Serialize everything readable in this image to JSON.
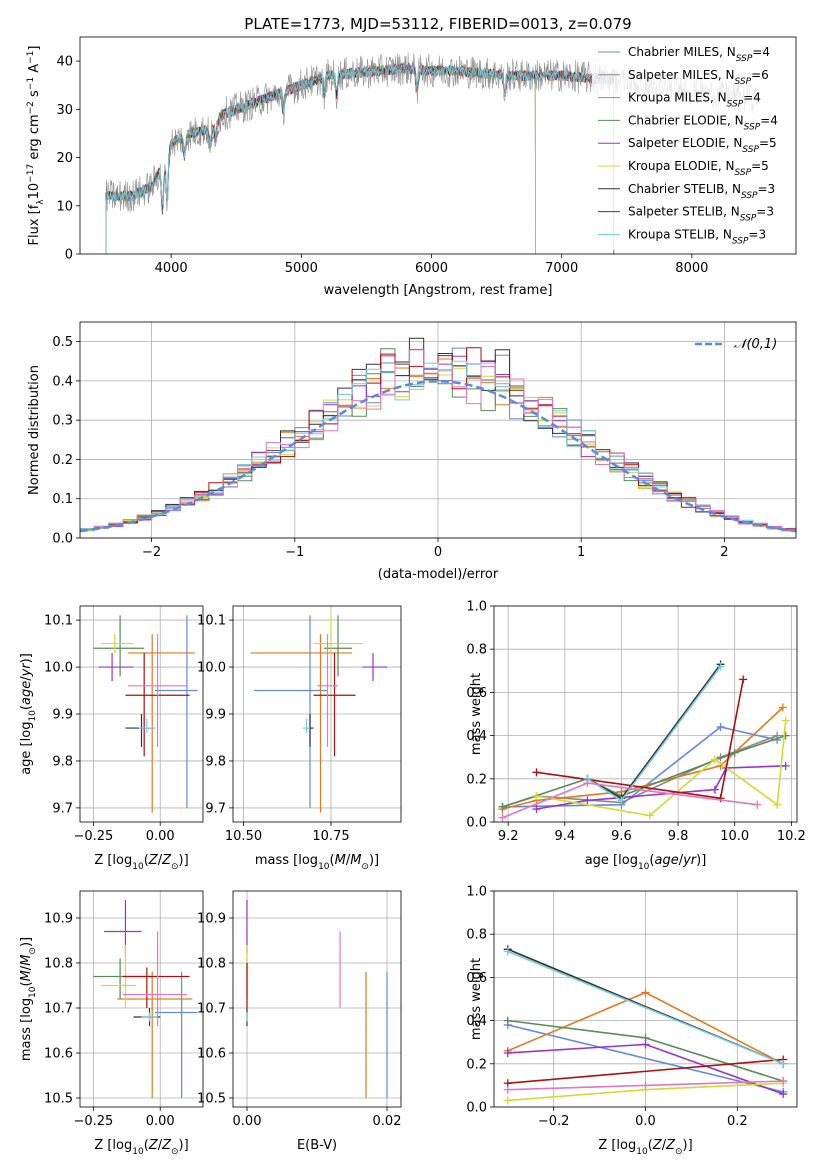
{
  "figure": {
    "title": "PLATE=1773, MJD=53112, FIBERID=0013, z=0.079"
  },
  "colors": {
    "Chabrier MILES": "#6688dd",
    "Salpeter MILES": "#888888",
    "Kroupa MILES": "#e07a1f",
    "Chabrier ELODIE": "#5a8a5a",
    "Salpeter ELODIE": "#9933cc",
    "Kroupa ELODIE": "#ccdd33",
    "Chabrier STELIB": "#333333",
    "Salpeter STELIB": "#aa1111",
    "Kroupa STELIB": "#77ccdd",
    "pink": "#e377c2",
    "normal_curve": "#5b8bdc"
  },
  "chart_data": [
    {
      "type": "line",
      "xlabel": "wavelength [Angstrom, rest frame]",
      "ylabel": "Flux [f_λ10^-17 erg cm^-2 s^-1 A^-1]",
      "xlim": [
        3300,
        8800
      ],
      "ylim": [
        0,
        45
      ],
      "xticks": [
        4000,
        5000,
        6000,
        7000,
        8000
      ],
      "yticks": [
        0,
        10,
        20,
        30,
        40
      ],
      "legend_location": "upper-right",
      "legend": [
        {
          "label": "Chabrier MILES, N",
          "sub": "SSP",
          "eq": "=4"
        },
        {
          "label": "Salpeter MILES, N",
          "sub": "SSP",
          "eq": "=6"
        },
        {
          "label": "Kroupa MILES, N",
          "sub": "SSP",
          "eq": "=4"
        },
        {
          "label": "Chabrier ELODIE, N",
          "sub": "SSP",
          "eq": "=4"
        },
        {
          "label": "Salpeter ELODIE, N",
          "sub": "SSP",
          "eq": "=5"
        },
        {
          "label": "Kroupa ELODIE, N",
          "sub": "SSP",
          "eq": "=5"
        },
        {
          "label": "Chabrier STELIB, N",
          "sub": "SSP",
          "eq": "=3"
        },
        {
          "label": "Salpeter STELIB, N",
          "sub": "SSP",
          "eq": "=3"
        },
        {
          "label": "Kroupa STELIB, N",
          "sub": "SSP",
          "eq": "=3"
        }
      ],
      "continuum": [
        [
          3500,
          12
        ],
        [
          3700,
          12
        ],
        [
          3850,
          14
        ],
        [
          3950,
          19
        ],
        [
          4000,
          23
        ],
        [
          4150,
          25
        ],
        [
          4300,
          26
        ],
        [
          4400,
          29
        ],
        [
          4600,
          31
        ],
        [
          4800,
          33
        ],
        [
          5000,
          35
        ],
        [
          5200,
          37
        ],
        [
          5400,
          37.5
        ],
        [
          5600,
          38
        ],
        [
          5800,
          38.5
        ],
        [
          6000,
          38
        ],
        [
          6200,
          38
        ],
        [
          6400,
          37.5
        ],
        [
          6600,
          37
        ],
        [
          6800,
          37
        ],
        [
          7000,
          37
        ],
        [
          7200,
          36.5
        ],
        [
          7400,
          36
        ],
        [
          7600,
          35
        ],
        [
          7800,
          34.5
        ],
        [
          8000,
          34
        ],
        [
          8200,
          33
        ],
        [
          8400,
          32.5
        ],
        [
          8500,
          32
        ]
      ],
      "cutoffs": {
        "ELODIE": [
          3500,
          6800
        ],
        "STELIB": [
          3500,
          7400
        ],
        "MILES": [
          3500,
          7400
        ]
      }
    },
    {
      "type": "histogram",
      "xlabel": "(data-model)/error",
      "ylabel": "Normed distribution",
      "xlim": [
        -2.5,
        2.5
      ],
      "ylim": [
        0,
        0.55
      ],
      "xticks": [
        -2,
        -1,
        0,
        1,
        2
      ],
      "xtick_labels": [
        "−2",
        "−1",
        "0",
        "1",
        "2"
      ],
      "yticks": [
        0.0,
        0.1,
        0.2,
        0.3,
        0.4,
        0.5
      ],
      "bins": 50,
      "legend": "𝒩(0,1)",
      "legend_location": "upper-right",
      "grid": true
    },
    {
      "type": "scatter-errorbar",
      "xlabel": "Z [log10(Z/Z⊙)]",
      "ylabel": "age  [log10(age/yr)]",
      "xlim": [
        -0.3,
        0.16
      ],
      "ylim": [
        9.67,
        10.13
      ],
      "xticks": [
        -0.25,
        0.0
      ],
      "xtick_labels": [
        "−0.25",
        "0.00"
      ],
      "yticks": [
        9.7,
        9.8,
        9.9,
        10.0,
        10.1
      ],
      "points": [
        {
          "c": "Chabrier MILES",
          "x": 0.1,
          "y": 9.95,
          "xe": [
            -0.02,
            0.14
          ],
          "ye": [
            9.7,
            10.11
          ]
        },
        {
          "c": "Kroupa MILES",
          "x": -0.03,
          "y": 10.03,
          "xe": [
            -0.12,
            0.13
          ],
          "ye": [
            9.69,
            10.07
          ]
        },
        {
          "c": "Chabrier ELODIE",
          "x": -0.15,
          "y": 10.04,
          "xe": [
            -0.25,
            -0.06
          ],
          "ye": [
            9.98,
            10.11
          ]
        },
        {
          "c": "Salpeter ELODIE",
          "x": -0.18,
          "y": 10.0,
          "xe": [
            -0.23,
            -0.1
          ],
          "ye": [
            9.97,
            10.03
          ]
        },
        {
          "c": "Kroupa ELODIE",
          "x": -0.17,
          "y": 10.05,
          "xe": [
            -0.22,
            -0.1
          ],
          "ye": [
            10.03,
            10.07
          ]
        },
        {
          "c": "Chabrier STELIB",
          "x": -0.07,
          "y": 9.87,
          "xe": [
            -0.13,
            -0.02
          ],
          "ye": [
            9.83,
            9.9
          ]
        },
        {
          "c": "Salpeter STELIB",
          "x": -0.06,
          "y": 9.94,
          "xe": [
            -0.13,
            0.11
          ],
          "ye": [
            9.81,
            10.03
          ]
        },
        {
          "c": "Kroupa STELIB",
          "x": -0.05,
          "y": 9.87,
          "xe": [
            -0.08,
            -0.02
          ],
          "ye": [
            9.86,
            9.89
          ]
        },
        {
          "c": "pink",
          "x": -0.01,
          "y": 9.96,
          "xe": [
            -0.12,
            0.1
          ],
          "ye": [
            9.83,
            10.07
          ]
        }
      ]
    },
    {
      "type": "scatter-errorbar",
      "xlabel": "mass [log10(M/M⊙)]",
      "ylabel": "",
      "xlim": [
        10.47,
        10.95
      ],
      "ylim": [
        9.67,
        10.13
      ],
      "xticks": [
        10.5,
        10.75
      ],
      "xtick_labels": [
        "10.50",
        "10.75"
      ],
      "yticks": [
        9.7,
        9.8,
        9.9,
        10.0,
        10.1
      ],
      "points": [
        {
          "c": "Chabrier MILES",
          "x": 10.69,
          "y": 9.95,
          "xe": [
            10.53,
            10.74
          ],
          "ye": [
            9.7,
            10.11
          ]
        },
        {
          "c": "Kroupa MILES",
          "x": 10.72,
          "y": 10.03,
          "xe": [
            10.52,
            10.81
          ],
          "ye": [
            9.69,
            10.07
          ]
        },
        {
          "c": "Chabrier ELODIE",
          "x": 10.77,
          "y": 10.04,
          "xe": [
            10.73,
            10.81
          ],
          "ye": [
            9.98,
            10.11
          ]
        },
        {
          "c": "Salpeter ELODIE",
          "x": 10.87,
          "y": 10.0,
          "xe": [
            10.84,
            10.91
          ],
          "ye": [
            9.97,
            10.03
          ]
        },
        {
          "c": "Kroupa ELODIE",
          "x": 10.75,
          "y": 10.05,
          "xe": [
            10.7,
            10.84
          ],
          "ye": [
            10.03,
            10.11
          ]
        },
        {
          "c": "Chabrier STELIB",
          "x": 10.69,
          "y": 9.87,
          "xe": [
            10.68,
            10.7
          ],
          "ye": [
            9.83,
            9.9
          ]
        },
        {
          "c": "Salpeter STELIB",
          "x": 10.76,
          "y": 9.94,
          "xe": [
            10.7,
            10.82
          ],
          "ye": [
            9.81,
            10.03
          ]
        },
        {
          "c": "Kroupa STELIB",
          "x": 10.68,
          "y": 9.87,
          "xe": [
            10.67,
            10.69
          ],
          "ye": [
            9.86,
            9.89
          ]
        },
        {
          "c": "pink",
          "x": 10.74,
          "y": 9.96,
          "xe": [
            10.71,
            10.77
          ],
          "ye": [
            9.83,
            10.07
          ]
        }
      ]
    },
    {
      "type": "line",
      "xlabel": "age  [log10(age/yr)]",
      "ylabel": "mass weight",
      "xlim": [
        9.15,
        10.22
      ],
      "ylim": [
        0,
        1.0
      ],
      "xticks": [
        9.2,
        9.4,
        9.6,
        9.8,
        10.0,
        10.2
      ],
      "xtick_labels": [
        "9.2",
        "9.4",
        "9.6",
        "9.8",
        "10.0",
        "10.2"
      ],
      "yticks": [
        0.0,
        0.2,
        0.4,
        0.6,
        0.8,
        1.0
      ],
      "grid": true,
      "series": [
        {
          "c": "Chabrier MILES",
          "x": [
            9.18,
            9.6,
            9.95,
            10.15
          ],
          "y": [
            0.07,
            0.08,
            0.44,
            0.38
          ]
        },
        {
          "c": "Salpeter MILES",
          "x": [
            9.18,
            9.3,
            9.6,
            9.95,
            10.15
          ],
          "y": [
            0.07,
            0.12,
            0.09,
            0.3,
            0.4
          ]
        },
        {
          "c": "Kroupa MILES",
          "x": [
            9.18,
            9.3,
            9.6,
            9.95,
            10.17
          ],
          "y": [
            0.06,
            0.1,
            0.14,
            0.26,
            0.53
          ]
        },
        {
          "c": "Chabrier ELODIE",
          "x": [
            9.18,
            9.48,
            9.6,
            10.0,
            10.18
          ],
          "y": [
            0.07,
            0.2,
            0.12,
            0.32,
            0.4
          ]
        },
        {
          "c": "Salpeter ELODIE",
          "x": [
            9.3,
            9.48,
            9.93,
            9.97,
            10.18
          ],
          "y": [
            0.06,
            0.1,
            0.15,
            0.25,
            0.26
          ]
        },
        {
          "c": "Kroupa ELODIE",
          "x": [
            9.3,
            9.7,
            9.93,
            10.15,
            10.18
          ],
          "y": [
            0.12,
            0.03,
            0.29,
            0.08,
            0.47
          ]
        },
        {
          "c": "Chabrier STELIB",
          "x": [
            9.48,
            9.6,
            9.95
          ],
          "y": [
            0.2,
            0.11,
            0.73
          ]
        },
        {
          "c": "Salpeter STELIB",
          "x": [
            9.3,
            9.95,
            10.03
          ],
          "y": [
            0.23,
            0.11,
            0.66
          ]
        },
        {
          "c": "Kroupa STELIB",
          "x": [
            9.48,
            9.6,
            9.95
          ],
          "y": [
            0.2,
            0.1,
            0.72
          ]
        },
        {
          "c": "pink",
          "x": [
            9.18,
            9.48,
            10.08
          ],
          "y": [
            0.02,
            0.18,
            0.08
          ]
        }
      ]
    },
    {
      "type": "scatter-errorbar",
      "xlabel": "Z [log10(Z/Z⊙)]",
      "ylabel": "mass [log10(M/M⊙)]",
      "xlim": [
        -0.3,
        0.16
      ],
      "ylim": [
        10.48,
        10.96
      ],
      "xticks": [
        -0.25,
        0.0
      ],
      "xtick_labels": [
        "−0.25",
        "0.00"
      ],
      "yticks": [
        10.5,
        10.6,
        10.7,
        10.8,
        10.9
      ],
      "points": [
        {
          "c": "Chabrier MILES",
          "x": 0.08,
          "y": 10.69,
          "xe": [
            -0.02,
            0.14
          ],
          "ye": [
            10.5,
            10.78
          ]
        },
        {
          "c": "Kroupa MILES",
          "x": -0.03,
          "y": 10.72,
          "xe": [
            -0.16,
            0.12
          ],
          "ye": [
            10.5,
            10.78
          ]
        },
        {
          "c": "Chabrier ELODIE",
          "x": -0.15,
          "y": 10.77,
          "xe": [
            -0.25,
            -0.03
          ],
          "ye": [
            10.72,
            10.81
          ]
        },
        {
          "c": "Salpeter ELODIE",
          "x": -0.13,
          "y": 10.87,
          "xe": [
            -0.21,
            -0.07
          ],
          "ye": [
            10.82,
            10.94
          ]
        },
        {
          "c": "Kroupa ELODIE",
          "x": -0.13,
          "y": 10.75,
          "xe": [
            -0.22,
            -0.09
          ],
          "ye": [
            10.7,
            10.84
          ]
        },
        {
          "c": "Chabrier STELIB",
          "x": -0.04,
          "y": 10.68,
          "xe": [
            -0.1,
            0.0
          ],
          "ye": [
            10.66,
            10.7
          ]
        },
        {
          "c": "Salpeter STELIB",
          "x": -0.05,
          "y": 10.77,
          "xe": [
            -0.14,
            0.11
          ],
          "ye": [
            10.7,
            10.79
          ]
        },
        {
          "c": "Kroupa STELIB",
          "x": -0.04,
          "y": 10.68,
          "xe": [
            -0.07,
            -0.01
          ],
          "ye": [
            10.67,
            10.69
          ]
        },
        {
          "c": "pink",
          "x": -0.01,
          "y": 10.73,
          "xe": [
            -0.14,
            0.1
          ],
          "ye": [
            10.66,
            10.87
          ]
        }
      ]
    },
    {
      "type": "scatter-errorbar",
      "xlabel": "E(B-V)",
      "ylabel": "",
      "xlim": [
        -0.002,
        0.022
      ],
      "ylim": [
        10.48,
        10.96
      ],
      "xticks": [
        0.0,
        0.02
      ],
      "xtick_labels": [
        "0.00",
        "0.02"
      ],
      "yticks": [
        10.5,
        10.6,
        10.7,
        10.8,
        10.9
      ],
      "points": [
        {
          "c": "Chabrier MILES",
          "x": 0.02,
          "y": 10.69,
          "ye": [
            10.5,
            10.78
          ]
        },
        {
          "c": "Kroupa MILES",
          "x": 0.017,
          "y": 10.72,
          "ye": [
            10.5,
            10.78
          ]
        },
        {
          "c": "Chabrier ELODIE",
          "x": 0.0,
          "y": 10.77,
          "ye": [
            10.72,
            10.81
          ]
        },
        {
          "c": "Salpeter ELODIE",
          "x": 0.0,
          "y": 10.87,
          "ye": [
            10.82,
            10.94
          ]
        },
        {
          "c": "Kroupa ELODIE",
          "x": 0.0,
          "y": 10.75,
          "ye": [
            10.7,
            10.84
          ]
        },
        {
          "c": "Chabrier STELIB",
          "x": 0.0,
          "y": 10.68,
          "ye": [
            10.66,
            10.7
          ]
        },
        {
          "c": "Salpeter STELIB",
          "x": 0.0,
          "y": 10.77,
          "ye": [
            10.7,
            10.8
          ]
        },
        {
          "c": "Kroupa STELIB",
          "x": 0.0,
          "y": 10.68,
          "ye": [
            10.67,
            10.69
          ]
        },
        {
          "c": "pink",
          "x": 0.0133,
          "y": 10.79,
          "ye": [
            10.7,
            10.87
          ]
        }
      ]
    },
    {
      "type": "line",
      "xlabel": "Z [log10(Z/Z⊙)]",
      "ylabel": "mass weight",
      "xlim": [
        -0.33,
        0.33
      ],
      "ylim": [
        0,
        1.0
      ],
      "xticks": [
        -0.2,
        0.0,
        0.2
      ],
      "xtick_labels": [
        "−0.2",
        "0.0",
        "0.2"
      ],
      "yticks": [
        0.0,
        0.2,
        0.4,
        0.6,
        0.8,
        1.0
      ],
      "grid": true,
      "series": [
        {
          "c": "Chabrier MILES",
          "x": [
            -0.3,
            0.3
          ],
          "y": [
            0.38,
            0.07
          ]
        },
        {
          "c": "Kroupa MILES",
          "x": [
            -0.3,
            0.0,
            0.3
          ],
          "y": [
            0.26,
            0.53,
            0.2
          ]
        },
        {
          "c": "Chabrier ELODIE",
          "x": [
            -0.3,
            0.0,
            0.3
          ],
          "y": [
            0.4,
            0.32,
            0.12
          ]
        },
        {
          "c": "Salpeter ELODIE",
          "x": [
            -0.3,
            0.0,
            0.3
          ],
          "y": [
            0.25,
            0.29,
            0.06
          ]
        },
        {
          "c": "Kroupa ELODIE",
          "x": [
            -0.3,
            0.0,
            0.3
          ],
          "y": [
            0.03,
            0.08,
            0.11
          ]
        },
        {
          "c": "Chabrier STELIB",
          "x": [
            -0.3,
            0.3
          ],
          "y": [
            0.73,
            0.2
          ]
        },
        {
          "c": "Salpeter STELIB",
          "x": [
            -0.3,
            0.3
          ],
          "y": [
            0.11,
            0.22
          ]
        },
        {
          "c": "Kroupa STELIB",
          "x": [
            -0.3,
            0.3
          ],
          "y": [
            0.72,
            0.2
          ]
        },
        {
          "c": "pink",
          "x": [
            -0.3,
            0.0,
            0.3
          ],
          "y": [
            0.08,
            0.1,
            0.12
          ]
        }
      ]
    }
  ]
}
